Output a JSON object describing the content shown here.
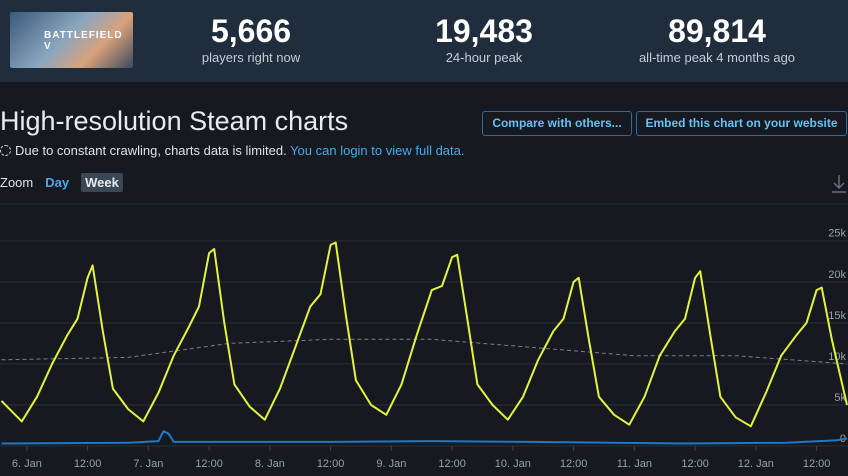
{
  "header": {
    "game_image_text": "BATTLEFIELD V",
    "stats": [
      {
        "value": "5,666",
        "label": "players right now"
      },
      {
        "value": "19,483",
        "label": "24-hour peak"
      },
      {
        "value": "89,814",
        "label": "all-time peak 4 months ago"
      }
    ]
  },
  "title": "High-resolution Steam charts",
  "buttons": [
    "Compare with others...",
    "Embed this chart on your website"
  ],
  "notice": {
    "text": "Due to constant crawling, charts data is limited.",
    "link": "You can login to view full data."
  },
  "zoom": {
    "label": "Zoom",
    "options": [
      "Day",
      "Week"
    ]
  },
  "chart_data": {
    "type": "line",
    "xlim": [
      -5.3,
      162.2
    ],
    "ylim": [
      0,
      29000
    ],
    "xticks": [
      {
        "value": 0,
        "label": "6. Jan"
      },
      {
        "value": 12,
        "label": "12:00"
      },
      {
        "value": 24,
        "label": "7. Jan"
      },
      {
        "value": 36,
        "label": "12:00"
      },
      {
        "value": 48,
        "label": "8. Jan"
      },
      {
        "value": 60,
        "label": "12:00"
      },
      {
        "value": 72,
        "label": "9. Jan"
      },
      {
        "value": 84,
        "label": "12:00"
      },
      {
        "value": 96,
        "label": "10. Jan"
      },
      {
        "value": 108,
        "label": "12:00"
      },
      {
        "value": 120,
        "label": "11. Jan"
      },
      {
        "value": 132,
        "label": "12:00"
      },
      {
        "value": 144,
        "label": "12. Jan"
      },
      {
        "value": 156,
        "label": "12:00"
      }
    ],
    "yticks": [
      0,
      {
        "value": 5000,
        "label": "5k"
      },
      {
        "value": 10000,
        "label": "10k"
      },
      {
        "value": 15000,
        "label": "15k"
      },
      {
        "value": 20000,
        "label": "20k"
      },
      {
        "value": 25000,
        "label": "25k"
      }
    ],
    "grid": true,
    "series": [
      {
        "color": "#e5f23b",
        "style": "solid",
        "x": [
          -5,
          -1,
          2,
          5,
          8,
          10,
          12,
          13,
          15,
          17,
          20,
          23,
          26,
          29,
          32,
          34,
          36,
          37,
          39,
          41,
          44,
          47,
          50,
          53,
          56,
          58,
          60,
          61,
          63,
          65,
          68,
          71,
          74,
          77,
          80,
          82,
          84,
          85,
          87,
          89,
          92,
          95,
          98,
          101,
          104,
          106,
          108,
          109,
          111,
          113,
          116,
          119,
          122,
          125,
          128,
          130,
          132,
          133,
          135,
          137,
          140,
          143,
          146,
          149,
          152,
          154,
          156,
          157,
          159,
          162
        ],
        "values": [
          5500,
          3000,
          6000,
          10000,
          13500,
          15500,
          20500,
          22000,
          14000,
          7000,
          4500,
          3000,
          6500,
          11000,
          14500,
          17000,
          23500,
          24000,
          15000,
          7500,
          4800,
          3200,
          7000,
          12000,
          17000,
          18500,
          24500,
          24800,
          16000,
          8000,
          5000,
          3800,
          7500,
          13500,
          19000,
          19500,
          23000,
          23300,
          15500,
          7500,
          5000,
          3200,
          6000,
          10500,
          14000,
          15500,
          20000,
          20500,
          13000,
          6000,
          3800,
          2600,
          6000,
          11000,
          14000,
          15500,
          20500,
          21300,
          13500,
          6000,
          3500,
          2400,
          6500,
          11000,
          13500,
          15000,
          19000,
          19300,
          13000,
          5000
        ]
      },
      {
        "color": "#7a7f88",
        "style": "dashed",
        "x": [
          -5,
          20,
          40,
          60,
          80,
          100,
          120,
          140,
          162
        ],
        "values": [
          10500,
          10800,
          12500,
          13000,
          13000,
          12000,
          11000,
          11000,
          10000
        ]
      },
      {
        "color": "#1f78c8",
        "style": "solid",
        "x": [
          -5,
          20,
          26,
          27,
          28,
          29,
          60,
          80,
          100,
          130,
          150,
          160,
          162
        ],
        "values": [
          300,
          400,
          600,
          1800,
          1500,
          500,
          500,
          600,
          500,
          300,
          400,
          700,
          900
        ]
      }
    ]
  }
}
